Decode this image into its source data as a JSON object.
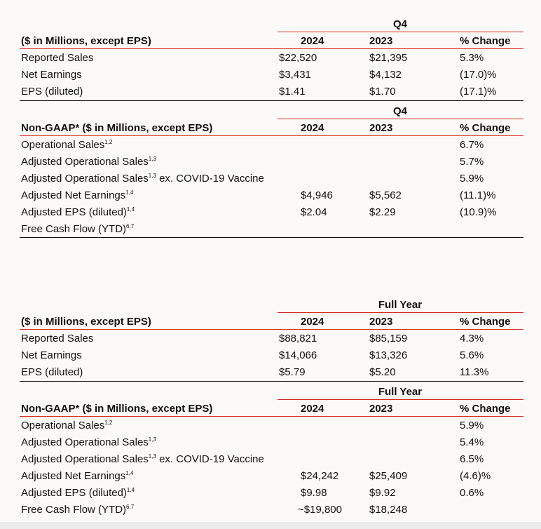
{
  "q4": {
    "period": "Q4",
    "reported": {
      "title": "($ in Millions, except EPS)",
      "col1": "2024",
      "col2": "2023",
      "col3": "% Change",
      "rows": [
        {
          "label": "Reported Sales",
          "sup": "",
          "suffix": "",
          "v1": "$22,520",
          "v2": "$21,395",
          "v3": "5.3%"
        },
        {
          "label": "Net Earnings",
          "sup": "",
          "suffix": "",
          "v1": "$3,431",
          "v2": "$4,132",
          "v3": "(17.0)%"
        },
        {
          "label": "EPS (diluted)",
          "sup": "",
          "suffix": "",
          "v1": "$1.41",
          "v2": "$1.70",
          "v3": "(17.1)%"
        }
      ]
    },
    "non_gaap": {
      "title": "Non-GAAP* ($ in Millions, except EPS)",
      "col1": "2024",
      "col2": "2023",
      "col3": "% Change",
      "rows": [
        {
          "label": "Operational Sales",
          "sup": "1,2",
          "suffix": "",
          "v1": "",
          "v2": "",
          "v3": "6.7%"
        },
        {
          "label": "Adjusted Operational Sales",
          "sup": "1,3",
          "suffix": "",
          "v1": "",
          "v2": "",
          "v3": "5.7%"
        },
        {
          "label": "Adjusted Operational Sales",
          "sup": "1,3",
          "suffix": " ex. COVID-19 Vaccine",
          "v1": "",
          "v2": "",
          "v3": "5.9%"
        },
        {
          "label": "Adjusted Net Earnings",
          "sup": "1,4",
          "suffix": "",
          "v1": "$4,946",
          "v2": "$5,562",
          "v3": "(11.1)%"
        },
        {
          "label": "Adjusted EPS (diluted)",
          "sup": "1,4",
          "suffix": "",
          "v1": "$2.04",
          "v2": "$2.29",
          "v3": "(10.9)%"
        },
        {
          "label": "Free Cash Flow (YTD)",
          "sup": "6,7",
          "suffix": "",
          "v1": "",
          "v2": "",
          "v3": ""
        }
      ]
    }
  },
  "fy": {
    "period": "Full Year",
    "reported": {
      "title": "($ in Millions, except EPS)",
      "col1": "2024",
      "col2": "2023",
      "col3": "% Change",
      "rows": [
        {
          "label": "Reported Sales",
          "sup": "",
          "suffix": "",
          "v1": "$88,821",
          "v2": "$85,159",
          "v3": "4.3%"
        },
        {
          "label": "Net Earnings",
          "sup": "",
          "suffix": "",
          "v1": "$14,066",
          "v2": "$13,326",
          "v3": "5.6%"
        },
        {
          "label": "EPS (diluted)",
          "sup": "",
          "suffix": "",
          "v1": "$5.79",
          "v2": "$5.20",
          "v3": "11.3%"
        }
      ]
    },
    "non_gaap": {
      "title": "Non-GAAP* ($ in Millions, except EPS)",
      "col1": "2024",
      "col2": "2023",
      "col3": "% Change",
      "rows": [
        {
          "label": "Operational Sales",
          "sup": "1,2",
          "suffix": "",
          "v1": "",
          "v2": "",
          "v3": "5.9%"
        },
        {
          "label": "Adjusted Operational Sales",
          "sup": "1,3",
          "suffix": "",
          "v1": "",
          "v2": "",
          "v3": "5.4%"
        },
        {
          "label": "Adjusted Operational Sales",
          "sup": "1,3",
          "suffix": " ex. COVID-19 Vaccine",
          "v1": "",
          "v2": "",
          "v3": "6.5%"
        },
        {
          "label": "Adjusted Net Earnings",
          "sup": "1,4",
          "suffix": "",
          "v1": "$24,242",
          "v2": "$25,409",
          "v3": "(4.6)%"
        },
        {
          "label": "Adjusted EPS (diluted)",
          "sup": "1,4",
          "suffix": "",
          "v1": "$9.98",
          "v2": "$9.92",
          "v3": "0.6%"
        },
        {
          "label": "Free Cash Flow (YTD)",
          "sup": "6,7",
          "suffix": "",
          "v1": "~$19,800",
          "v2": "$18,248",
          "v3": ""
        }
      ]
    }
  }
}
